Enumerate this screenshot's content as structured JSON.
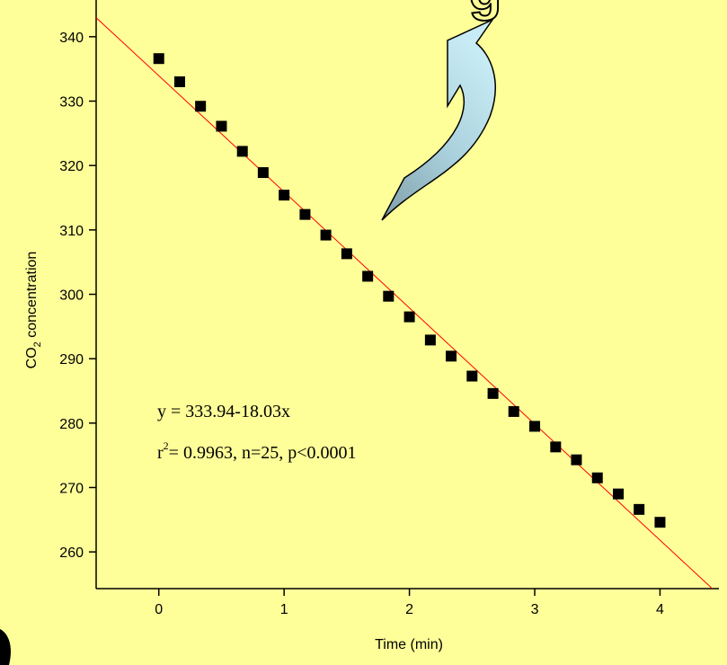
{
  "cropped_text": "g",
  "chart_data": {
    "type": "scatter",
    "x_label": "Time (min)",
    "y_label": {
      "main": "CO",
      "sub": "2",
      "rest": " concentration"
    },
    "x": [
      0,
      0.167,
      0.333,
      0.5,
      0.667,
      0.833,
      1,
      1.167,
      1.333,
      1.5,
      1.667,
      1.833,
      2,
      2.167,
      2.333,
      2.5,
      2.667,
      2.833,
      3,
      3.167,
      3.333,
      3.5,
      3.667,
      3.833,
      4
    ],
    "values": [
      336.6,
      333.0,
      329.2,
      326.1,
      322.2,
      318.9,
      315.4,
      312.4,
      309.2,
      306.3,
      302.8,
      299.7,
      296.5,
      292.9,
      290.4,
      287.3,
      284.6,
      281.8,
      279.5,
      276.3,
      274.3,
      271.5,
      269.0,
      266.6,
      264.6
    ],
    "color": "#000000",
    "fit": {
      "intercept": 333.94,
      "slope": -18.03,
      "color": "#ff0000"
    },
    "annotations": {
      "equation": "y = 333.94-18.03x",
      "stat_r": "r",
      "stat_sup": "2",
      "stat_rest": "= 0.9963, n=25, p<0.0001"
    },
    "xlim": [
      -0.5,
      4.47
    ],
    "ylim": [
      254.3,
      345.7
    ],
    "xticks": [
      0,
      1,
      2,
      3,
      4
    ],
    "yticks": [
      260,
      270,
      280,
      290,
      300,
      310,
      320,
      330,
      340
    ],
    "grid": false
  }
}
